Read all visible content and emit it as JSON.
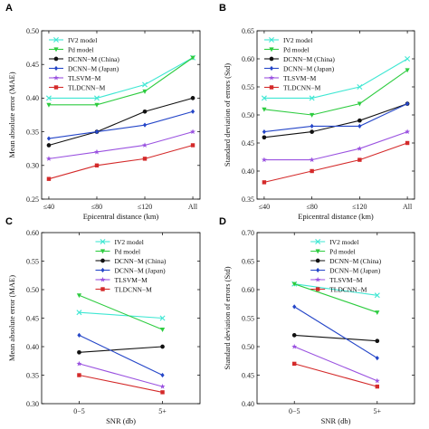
{
  "colors": {
    "IV2 model": "#3fe7d3",
    "Pd model": "#2ecc40",
    "DCNN-M (China)": "#111111",
    "DCNN-M (Japan)": "#2546c8",
    "TLSVM-M": "#9a52e0",
    "TLDCNN-M": "#d42a2a"
  },
  "markers": {
    "IV2 model": "x",
    "Pd model": "triangle-down",
    "DCNN-M (China)": "circle",
    "DCNN-M (Japan)": "diamond",
    "TLSVM-M": "star",
    "TLDCNN-M": "square"
  },
  "chart_data": [
    {
      "id": "A",
      "panel_label": "A",
      "type": "line",
      "categories": [
        "≤40",
        "≤80",
        "≤120",
        "All"
      ],
      "xlabel": "Epicentral distance (km)",
      "ylabel": "Mean absolute error (MAE)",
      "ylim": [
        0.25,
        0.5
      ],
      "yticks": [
        "0.25",
        "0.30",
        "0.35",
        "0.40",
        "0.45",
        "0.50"
      ],
      "legend_position": "top-left",
      "series": [
        {
          "name": "IV2 model",
          "values": [
            0.4,
            0.4,
            0.42,
            0.46
          ]
        },
        {
          "name": "Pd model",
          "values": [
            0.39,
            0.39,
            0.41,
            0.46
          ]
        },
        {
          "name": "DCNN−M (China)",
          "values": [
            0.33,
            0.35,
            0.38,
            0.4
          ]
        },
        {
          "name": "DCNN−M (Japan)",
          "values": [
            0.34,
            0.35,
            0.36,
            0.38
          ]
        },
        {
          "name": "TLSVM−M",
          "values": [
            0.31,
            0.32,
            0.33,
            0.35
          ]
        },
        {
          "name": "TLDCNN−M",
          "values": [
            0.28,
            0.3,
            0.31,
            0.33
          ]
        }
      ]
    },
    {
      "id": "B",
      "panel_label": "B",
      "type": "line",
      "categories": [
        "≤40",
        "≤80",
        "≤120",
        "All"
      ],
      "xlabel": "Epicentral distance (km)",
      "ylabel": "Standard deviation of errors (Std)",
      "ylim": [
        0.35,
        0.65
      ],
      "yticks": [
        "0.35",
        "0.40",
        "0.45",
        "0.50",
        "0.55",
        "0.60",
        "0.65"
      ],
      "legend_position": "top-left",
      "series": [
        {
          "name": "IV2 model",
          "values": [
            0.53,
            0.53,
            0.55,
            0.6
          ]
        },
        {
          "name": "Pd model",
          "values": [
            0.51,
            0.5,
            0.52,
            0.58
          ]
        },
        {
          "name": "DCNN−M (China)",
          "values": [
            0.46,
            0.47,
            0.49,
            0.52
          ]
        },
        {
          "name": "DCNN−M (Japan)",
          "values": [
            0.47,
            0.48,
            0.48,
            0.52
          ]
        },
        {
          "name": "TLSVM−M",
          "values": [
            0.42,
            0.42,
            0.44,
            0.47
          ]
        },
        {
          "name": "TLDCNN−M",
          "values": [
            0.38,
            0.4,
            0.42,
            0.45
          ]
        }
      ]
    },
    {
      "id": "C",
      "panel_label": "C",
      "type": "line",
      "categories": [
        "0−5",
        "5+"
      ],
      "xlabel": "SNR (db)",
      "ylabel": "Mean absolute error (MAE)",
      "ylim": [
        0.3,
        0.6
      ],
      "yticks": [
        "0.30",
        "0.35",
        "0.40",
        "0.45",
        "0.50",
        "0.55",
        "0.60"
      ],
      "legend_position": "top-right",
      "series": [
        {
          "name": "IV2 model",
          "values": [
            0.46,
            0.45
          ]
        },
        {
          "name": "Pd model",
          "values": [
            0.49,
            0.43
          ]
        },
        {
          "name": "DCNN−M (China)",
          "values": [
            0.39,
            0.4
          ]
        },
        {
          "name": "DCNN−M (Japan)",
          "values": [
            0.42,
            0.35
          ]
        },
        {
          "name": "TLSVM−M",
          "values": [
            0.37,
            0.33
          ]
        },
        {
          "name": "TLDCNN−M",
          "values": [
            0.35,
            0.32
          ]
        }
      ]
    },
    {
      "id": "D",
      "panel_label": "D",
      "type": "line",
      "categories": [
        "0−5",
        "5+"
      ],
      "xlabel": "SNR (db)",
      "ylabel": "Standard deviation of errors (Std)",
      "ylim": [
        0.4,
        0.7
      ],
      "yticks": [
        "0.40",
        "0.45",
        "0.50",
        "0.55",
        "0.60",
        "0.65",
        "0.70"
      ],
      "legend_position": "top-right",
      "series": [
        {
          "name": "IV2 model",
          "values": [
            0.61,
            0.59
          ]
        },
        {
          "name": "Pd model",
          "values": [
            0.61,
            0.56
          ]
        },
        {
          "name": "DCNN−M (China)",
          "values": [
            0.52,
            0.51
          ]
        },
        {
          "name": "DCNN−M (Japan)",
          "values": [
            0.57,
            0.48
          ]
        },
        {
          "name": "TLSVM−M",
          "values": [
            0.5,
            0.44
          ]
        },
        {
          "name": "TLDCNN−M",
          "values": [
            0.47,
            0.43
          ]
        }
      ]
    }
  ]
}
